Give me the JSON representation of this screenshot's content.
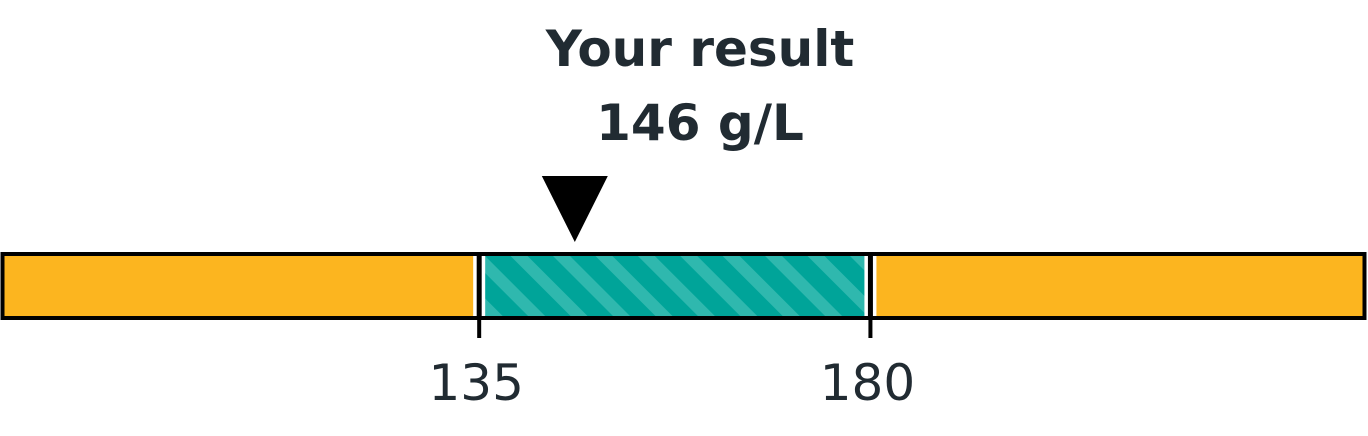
{
  "chart_data": {
    "type": "range-bar",
    "value": 146,
    "unit": "g/L",
    "title": "Your result",
    "value_label": "146 g/L",
    "normal_range": [
      135,
      180
    ],
    "display_range": [
      80,
      237
    ],
    "ticks": [
      {
        "value": 135,
        "label": "135"
      },
      {
        "value": 180,
        "label": "180"
      }
    ],
    "colors": {
      "out_of_range": "#fcb51f",
      "in_range": "#00a499",
      "in_range_stripe": "#2fb8ae",
      "border": "#000000",
      "text": "#212b32"
    }
  }
}
